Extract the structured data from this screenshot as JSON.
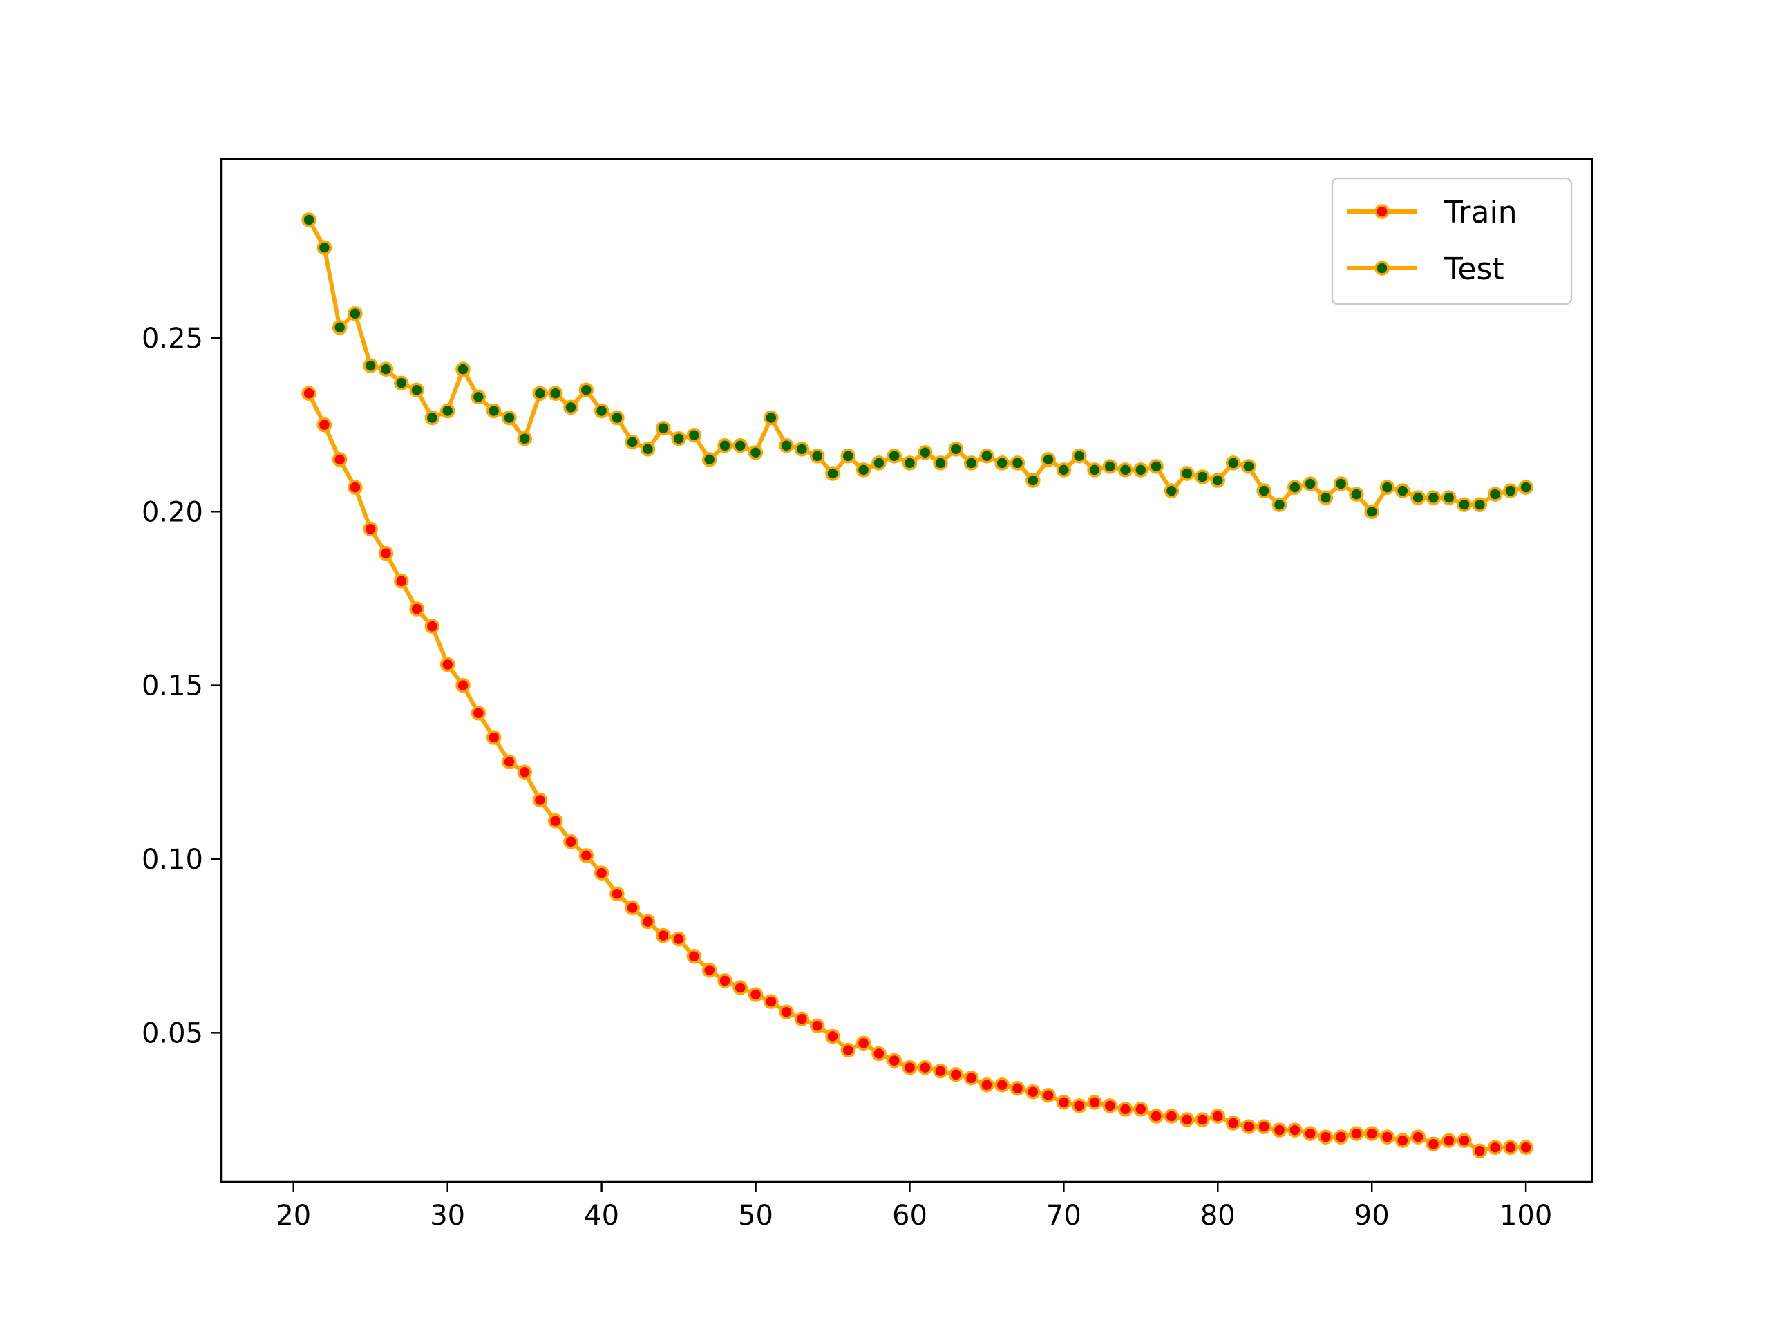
{
  "chart_data": {
    "type": "line",
    "title": "",
    "xlabel": "",
    "ylabel": "",
    "xlim": [
      15.3,
      104.3
    ],
    "ylim": [
      0.0071,
      0.3015
    ],
    "xticks": [
      20,
      30,
      40,
      50,
      60,
      70,
      80,
      90,
      100
    ],
    "xtick_labels": [
      "20",
      "30",
      "40",
      "50",
      "60",
      "70",
      "80",
      "90",
      "100"
    ],
    "yticks": [
      0.05,
      0.1,
      0.15,
      0.2,
      0.25
    ],
    "ytick_labels": [
      "0.05",
      "0.10",
      "0.15",
      "0.20",
      "0.25"
    ],
    "grid": false,
    "legend": {
      "position": "upper-right"
    },
    "x": [
      21,
      22,
      23,
      24,
      25,
      26,
      27,
      28,
      29,
      30,
      31,
      32,
      33,
      34,
      35,
      36,
      37,
      38,
      39,
      40,
      41,
      42,
      43,
      44,
      45,
      46,
      47,
      48,
      49,
      50,
      51,
      52,
      53,
      54,
      55,
      56,
      57,
      58,
      59,
      60,
      61,
      62,
      63,
      64,
      65,
      66,
      67,
      68,
      69,
      70,
      71,
      72,
      73,
      74,
      75,
      76,
      77,
      78,
      79,
      80,
      81,
      82,
      83,
      84,
      85,
      86,
      87,
      88,
      89,
      90,
      91,
      92,
      93,
      94,
      95,
      96,
      97,
      98,
      99,
      100
    ],
    "series": [
      {
        "name": "Train",
        "line_color": "#ffa500",
        "marker_color": "#ff0000",
        "values": [
          0.234,
          0.225,
          0.215,
          0.207,
          0.195,
          0.188,
          0.18,
          0.172,
          0.167,
          0.156,
          0.15,
          0.142,
          0.135,
          0.128,
          0.125,
          0.117,
          0.111,
          0.105,
          0.101,
          0.096,
          0.09,
          0.086,
          0.082,
          0.078,
          0.077,
          0.072,
          0.068,
          0.065,
          0.063,
          0.061,
          0.059,
          0.056,
          0.054,
          0.052,
          0.049,
          0.045,
          0.047,
          0.044,
          0.042,
          0.04,
          0.04,
          0.039,
          0.038,
          0.037,
          0.035,
          0.035,
          0.034,
          0.033,
          0.032,
          0.03,
          0.029,
          0.03,
          0.029,
          0.028,
          0.028,
          0.026,
          0.026,
          0.025,
          0.025,
          0.026,
          0.024,
          0.023,
          0.023,
          0.022,
          0.022,
          0.021,
          0.02,
          0.02,
          0.021,
          0.021,
          0.02,
          0.019,
          0.02,
          0.018,
          0.019,
          0.019,
          0.016,
          0.017,
          0.017,
          0.017
        ]
      },
      {
        "name": "Test",
        "line_color": "#ffa500",
        "marker_color": "#006400",
        "values": [
          0.284,
          0.276,
          0.253,
          0.257,
          0.242,
          0.241,
          0.237,
          0.235,
          0.227,
          0.229,
          0.241,
          0.233,
          0.229,
          0.227,
          0.221,
          0.234,
          0.234,
          0.23,
          0.235,
          0.229,
          0.227,
          0.22,
          0.218,
          0.224,
          0.221,
          0.222,
          0.215,
          0.219,
          0.219,
          0.217,
          0.227,
          0.219,
          0.218,
          0.216,
          0.211,
          0.216,
          0.212,
          0.214,
          0.216,
          0.214,
          0.217,
          0.214,
          0.218,
          0.214,
          0.216,
          0.214,
          0.214,
          0.209,
          0.215,
          0.212,
          0.216,
          0.212,
          0.213,
          0.212,
          0.212,
          0.213,
          0.206,
          0.211,
          0.21,
          0.209,
          0.214,
          0.213,
          0.206,
          0.202,
          0.207,
          0.208,
          0.204,
          0.208,
          0.205,
          0.2,
          0.207,
          0.206,
          0.204,
          0.204,
          0.204,
          0.202,
          0.202,
          0.205,
          0.206,
          0.207
        ]
      }
    ]
  }
}
